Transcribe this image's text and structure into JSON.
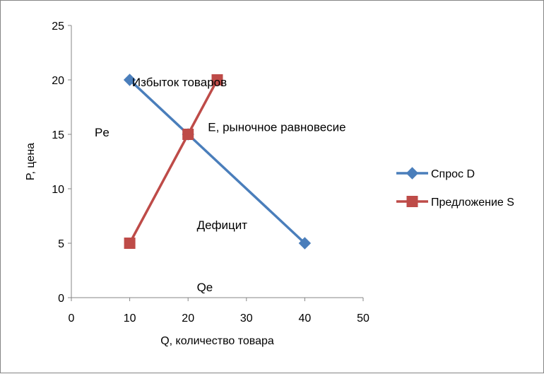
{
  "chart_data": {
    "type": "line",
    "title": "",
    "xlabel": "Q, количество товара",
    "ylabel": "P, цена",
    "xlim": [
      0,
      50
    ],
    "ylim": [
      0,
      25
    ],
    "xticks": [
      0,
      10,
      20,
      30,
      40,
      50
    ],
    "yticks": [
      0,
      5,
      10,
      15,
      20,
      25
    ],
    "grid": false,
    "legend": "right",
    "series": [
      {
        "name": "Спрос D",
        "color": "#4a7ebb",
        "marker": "diamond",
        "points": [
          {
            "x": 10,
            "y": 20
          },
          {
            "x": 20,
            "y": 15
          },
          {
            "x": 40,
            "y": 5
          }
        ]
      },
      {
        "name": "Предложение S",
        "color": "#be4b48",
        "marker": "square",
        "points": [
          {
            "x": 10,
            "y": 5
          },
          {
            "x": 20,
            "y": 15
          },
          {
            "x": 25,
            "y": 20
          }
        ]
      }
    ],
    "annotations": [
      {
        "text": "Избыток товаров",
        "x": 10.4,
        "y": 19.4
      },
      {
        "text": "Е, рыночное равновесие",
        "x": 23.4,
        "y": 15.3
      },
      {
        "text": "Pe",
        "x": 4.0,
        "y": 14.8
      },
      {
        "text": "Дефицит",
        "x": 21.5,
        "y": 6.3
      },
      {
        "text": "Qe",
        "x": 21.5,
        "y": 0.6
      }
    ]
  }
}
